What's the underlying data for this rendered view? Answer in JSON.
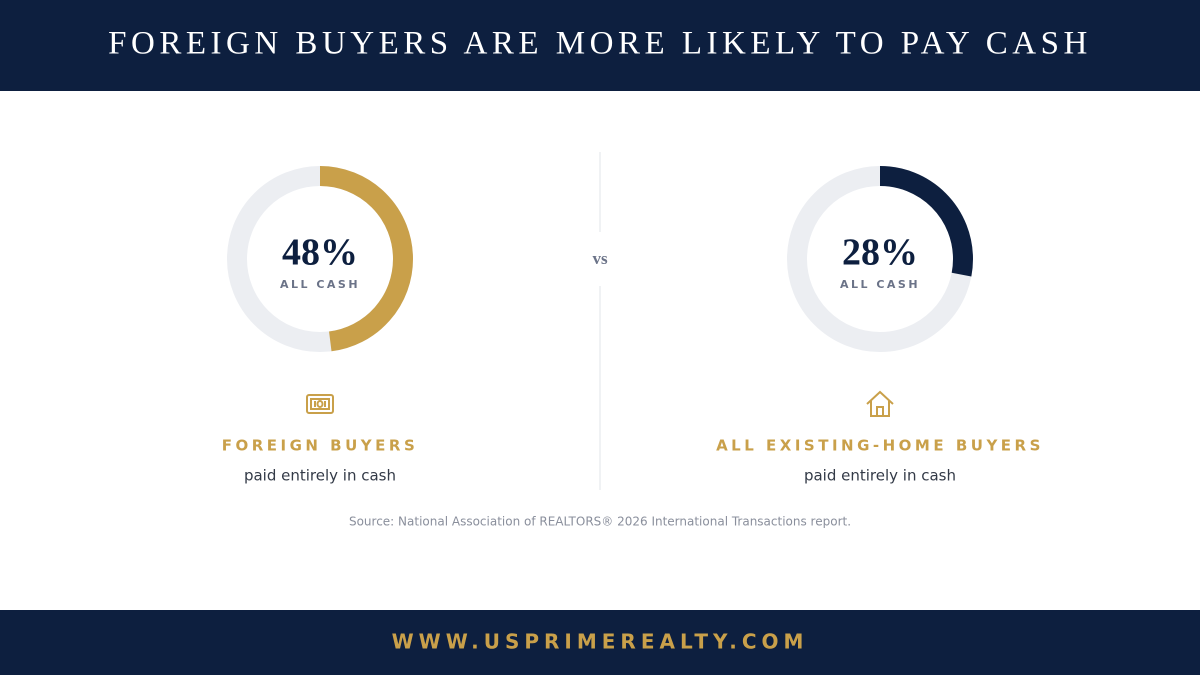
{
  "header": {
    "title": "FOREIGN BUYERS ARE MORE LIKELY TO PAY CASH"
  },
  "stats": [
    {
      "value": 48,
      "value_label": "48%",
      "caption": "ALL CASH",
      "label": "FOREIGN BUYERS",
      "subtitle": "paid entirely in cash",
      "color": "#c9a04a",
      "icon": "money"
    },
    {
      "value": 28,
      "value_label": "28%",
      "caption": "ALL CASH",
      "label": "ALL EXISTING-HOME BUYERS",
      "subtitle": "paid entirely in cash",
      "color": "#0d1f3f",
      "icon": "house"
    }
  ],
  "divider": "vs",
  "source": "Source: National Association of REALTORS® 2026 International Transactions report.",
  "footer": "WWW.USPRIMEREALTY.COM"
}
